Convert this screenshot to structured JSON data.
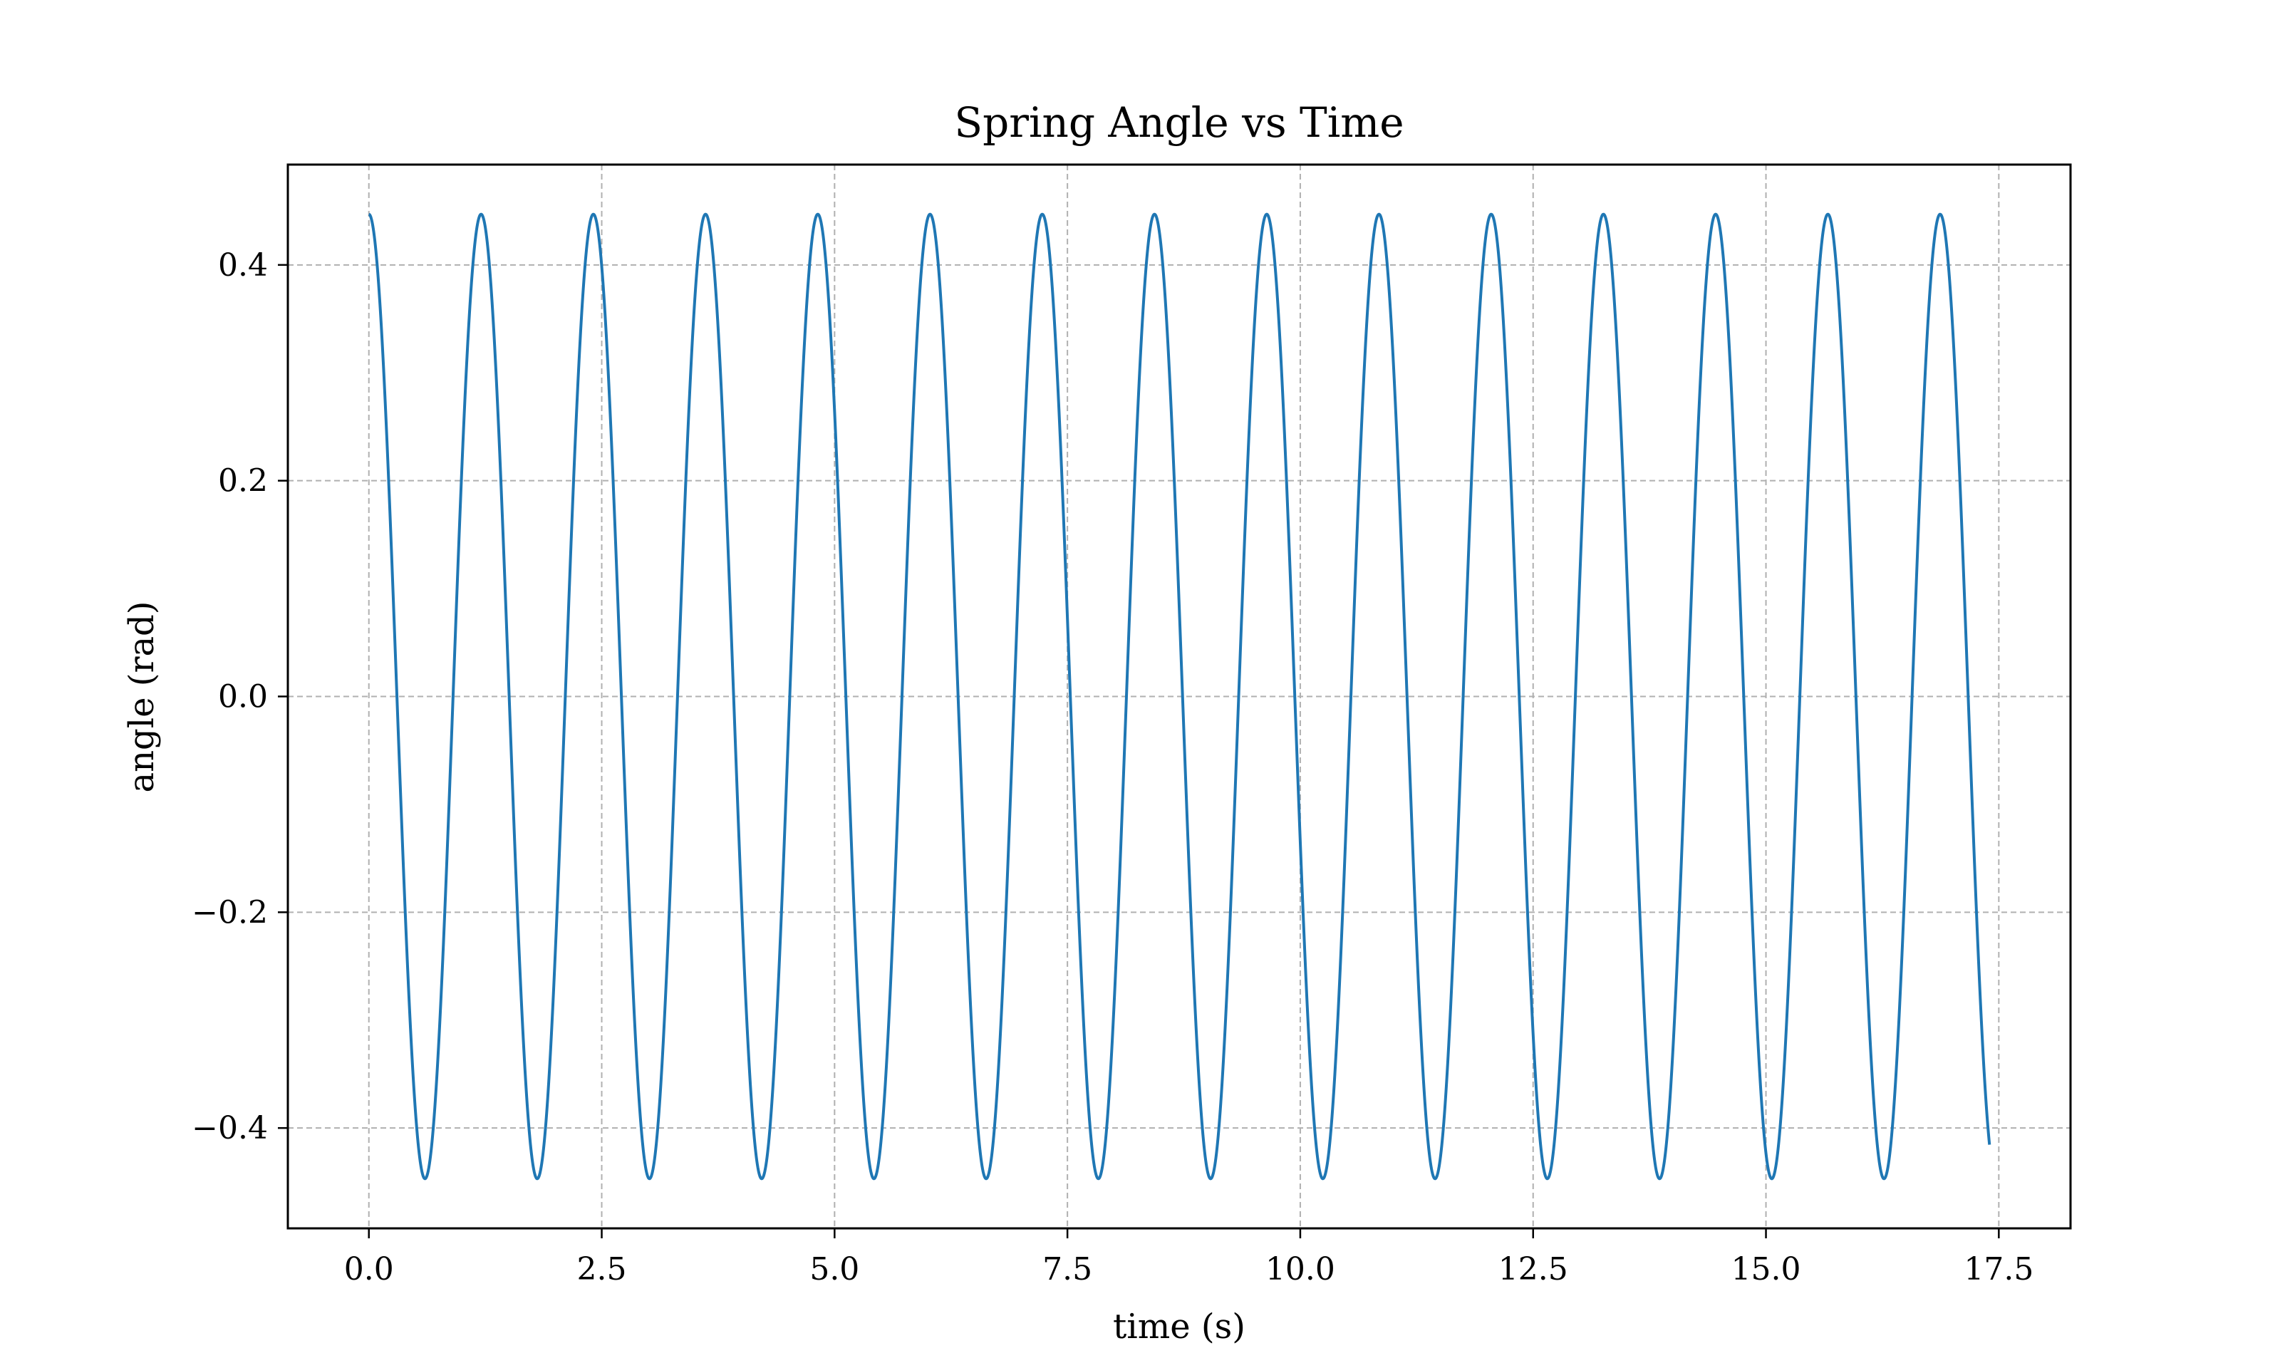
{
  "chart_data": {
    "type": "line",
    "title": "Spring Angle vs Time",
    "xlabel": "time (s)",
    "ylabel": "angle (rad)",
    "xlim": [
      -0.87,
      18.27
    ],
    "ylim": [
      -0.493,
      0.493
    ],
    "x_ticks": [
      0.0,
      2.5,
      5.0,
      7.5,
      10.0,
      12.5,
      15.0,
      17.5
    ],
    "x_tick_labels": [
      "0.0",
      "2.5",
      "5.0",
      "7.5",
      "10.0",
      "12.5",
      "15.0",
      "17.5"
    ],
    "y_ticks": [
      0.4,
      0.2,
      0.0,
      -0.2,
      -0.4
    ],
    "y_tick_labels": [
      "0.4",
      "0.2",
      "0.0",
      "−0.2",
      "−0.4"
    ],
    "grid": true,
    "line_color": "#1f77b4",
    "series": [
      {
        "x_start": 0.0,
        "x_end": 17.4,
        "amplitude": 0.447,
        "period": 1.205,
        "phase": 0,
        "function": "cosine"
      }
    ]
  }
}
